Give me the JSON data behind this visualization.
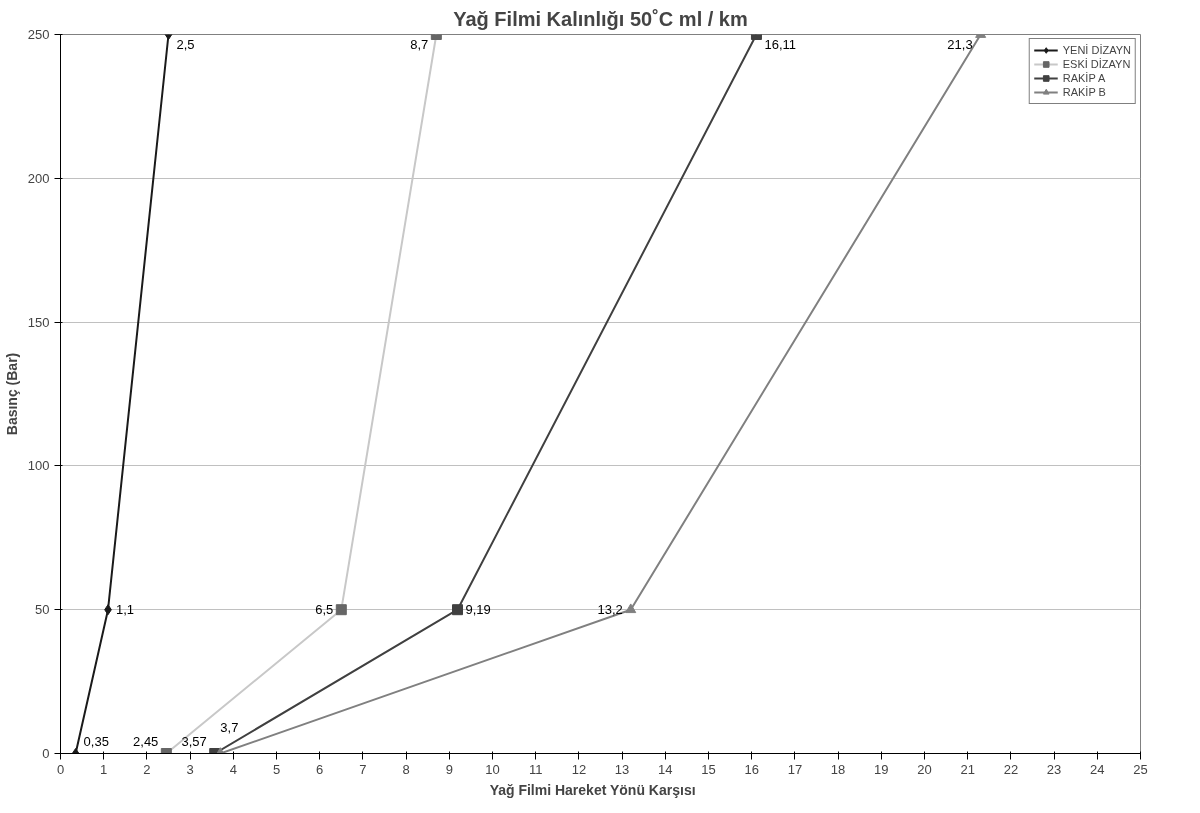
{
  "chart_data": {
    "type": "line",
    "title": "Yağ Filmi Kalınlığı 50˚C ml / km",
    "xlabel": "Yağ Filmi     Hareket Yönü Karşısı",
    "ylabel": "Basınç (Bar)",
    "xlim": [
      0,
      25
    ],
    "xticks": [
      0,
      1,
      2,
      3,
      4,
      5,
      6,
      7,
      8,
      9,
      10,
      11,
      12,
      13,
      14,
      15,
      16,
      17,
      18,
      19,
      20,
      21,
      22,
      23,
      24,
      25
    ],
    "ylim": [
      0,
      250
    ],
    "yticks": [
      0,
      50,
      100,
      150,
      200,
      250
    ],
    "grid": "y",
    "legend": "top right",
    "series": [
      {
        "name": "YENİ DİZAYN",
        "color": "#1a1a1a",
        "marker": "diamond",
        "x": [
          0.35,
          1.1,
          2.5
        ],
        "values": [
          0,
          50,
          250
        ]
      },
      {
        "name": "ESKİ DİZAYN",
        "color": "#c8c8c8",
        "marker": "square",
        "x": [
          2.45,
          6.5,
          8.7
        ],
        "values": [
          0,
          50,
          250
        ]
      },
      {
        "name": "RAKİP A",
        "color": "#404040",
        "marker": "square",
        "x": [
          3.57,
          9.19,
          16.11
        ],
        "values": [
          0,
          50,
          250
        ]
      },
      {
        "name": "RAKİP B",
        "color": "#808080",
        "marker": "triangle",
        "x": [
          3.7,
          13.2,
          21.3
        ],
        "values": [
          0,
          50,
          250
        ]
      }
    ],
    "annotations": [
      {
        "text": "0,35",
        "x": 0.35,
        "y": 0
      },
      {
        "text": "1,1",
        "x": 1.1,
        "y": 50
      },
      {
        "text": "2,5",
        "x": 2.5,
        "y": 250
      },
      {
        "text": "2,45",
        "x": 2.45,
        "y": 0
      },
      {
        "text": "6,5",
        "x": 6.5,
        "y": 50
      },
      {
        "text": "8,7",
        "x": 8.7,
        "y": 250
      },
      {
        "text": "3,57",
        "x": 3.57,
        "y": 0
      },
      {
        "text": "9,19",
        "x": 9.19,
        "y": 50
      },
      {
        "text": "16,11",
        "x": 16.11,
        "y": 250
      },
      {
        "text": "3,7",
        "x": 3.7,
        "y": 0
      },
      {
        "text": "13,2",
        "x": 13.2,
        "y": 50
      },
      {
        "text": "21,3",
        "x": 21.3,
        "y": 250
      }
    ]
  }
}
